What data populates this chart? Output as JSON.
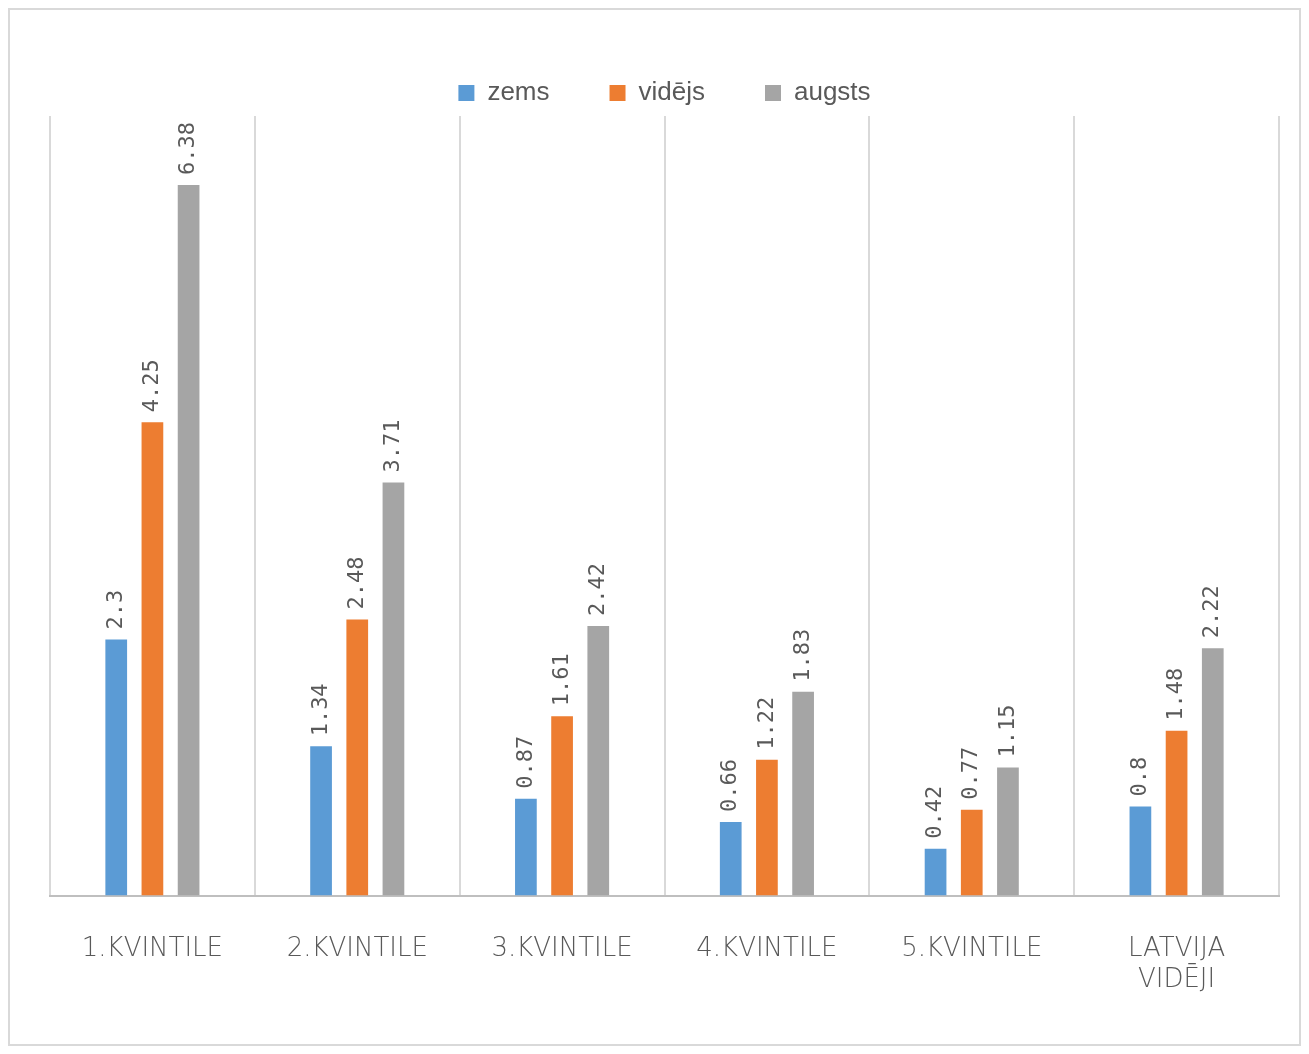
{
  "chart_data": {
    "type": "bar",
    "categories": [
      "1.KVINTILE",
      "2.KVINTILE",
      "3.KVINTILE",
      "4.KVINTILE",
      "5.KVINTILE",
      "LATVIJA VIDĒJI"
    ],
    "series": [
      {
        "name": "zems",
        "color": "#5b9bd5",
        "values": [
          2.3,
          1.34,
          0.87,
          0.66,
          0.42,
          0.8
        ]
      },
      {
        "name": "vidējs",
        "color": "#ed7d31",
        "values": [
          4.25,
          2.48,
          1.61,
          1.22,
          0.77,
          1.48
        ]
      },
      {
        "name": "augsts",
        "color": "#a5a5a5",
        "values": [
          6.38,
          3.71,
          2.42,
          1.83,
          1.15,
          2.22
        ]
      }
    ],
    "data_labels": true,
    "grid": "x",
    "legend": "top"
  }
}
